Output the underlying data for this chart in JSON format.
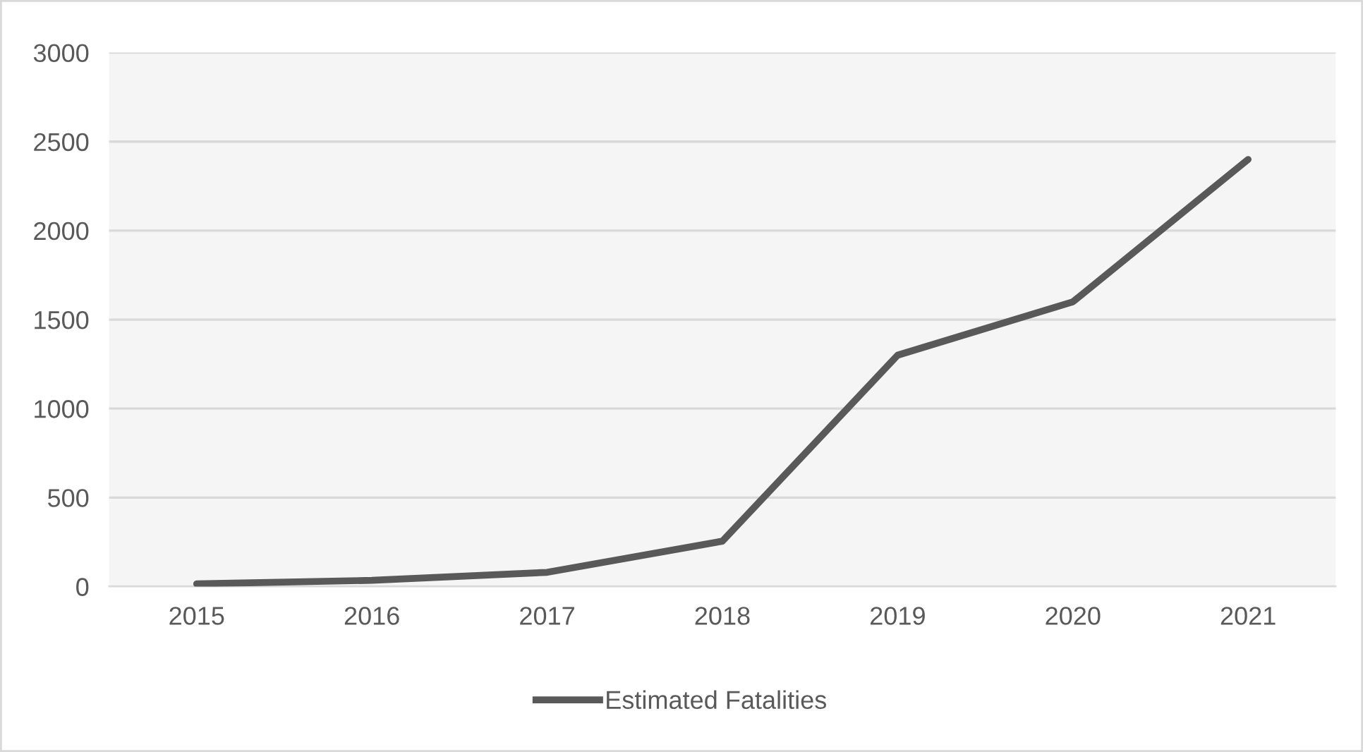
{
  "chart_data": {
    "type": "line",
    "categories": [
      "2015",
      "2016",
      "2017",
      "2018",
      "2019",
      "2020",
      "2021"
    ],
    "series": [
      {
        "name": "Estimated Fatalities",
        "color": "#595959",
        "values": [
          15,
          35,
          80,
          255,
          1300,
          1600,
          2400
        ]
      }
    ],
    "ylim": [
      0,
      3000
    ],
    "yticks": [
      0,
      500,
      1000,
      1500,
      2000,
      2500,
      3000
    ],
    "grid": "y",
    "legend": "bottom",
    "marker": "none",
    "line_style": "solid"
  }
}
